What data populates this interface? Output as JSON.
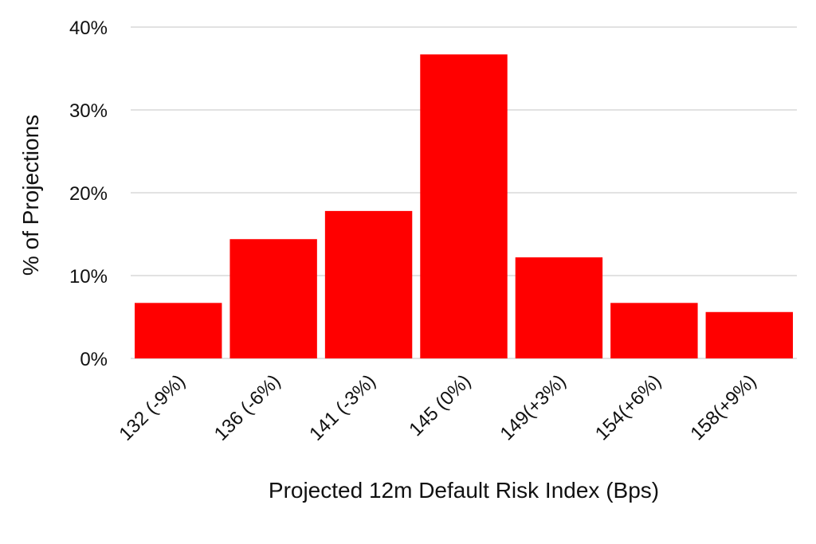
{
  "chart_data": {
    "type": "bar",
    "categories": [
      "132 (-9%)",
      "136 (-6%)",
      "141 (-3%)",
      "145 (0%)",
      "149(+3%)",
      "154(+6%)",
      "158(+9%)"
    ],
    "values": [
      6.7,
      14.4,
      17.8,
      36.7,
      12.2,
      6.7,
      5.6
    ],
    "value_unit": "%",
    "title": "",
    "xlabel": "Projected 12m Default Risk Index (Bps)",
    "ylabel": "% of Projections",
    "ylim": [
      0,
      40
    ],
    "yticks": [
      "0%",
      "10%",
      "20%",
      "30%",
      "40%"
    ],
    "grid": true,
    "legend": "none",
    "bar_color": "#ff0000"
  }
}
